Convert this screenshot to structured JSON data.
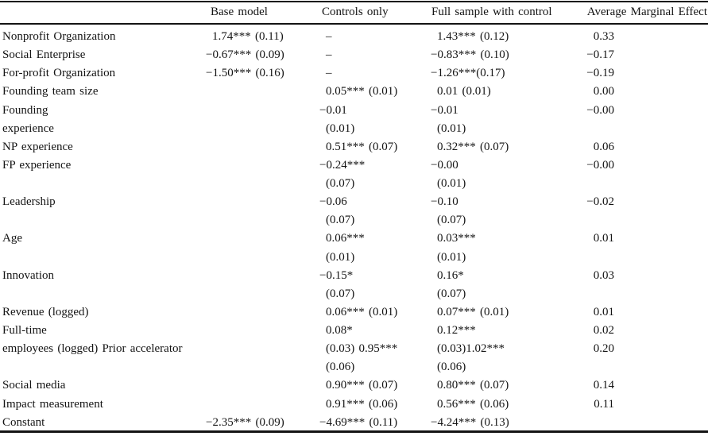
{
  "colors": {
    "background": "#ffffff",
    "text": "#141414",
    "rule": "#141414"
  },
  "table": {
    "columns": [
      "",
      "Base model",
      "Controls only",
      "Full sample with control",
      "Average Marginal Effect"
    ],
    "rows": [
      [
        "Nonprofit Organization",
        "1.74*** (0.11)",
        "–",
        "1.43*** (0.12)",
        "0.33"
      ],
      [
        "Social Enterprise",
        "−0.67*** (0.09)",
        "–",
        "−0.83*** (0.10)",
        "−0.17"
      ],
      [
        "For-profit Organization",
        "−1.50*** (0.16)",
        "–",
        "−1.26***(0.17)",
        "−0.19"
      ],
      [
        "Founding team size",
        "",
        "0.05*** (0.01)",
        "0.01 (0.01)",
        "0.00"
      ],
      [
        "Founding",
        "",
        "−0.01",
        "−0.01",
        "−0.00"
      ],
      [
        "experience",
        "",
        "(0.01)",
        "(0.01)",
        ""
      ],
      [
        "NP experience",
        "",
        "0.51*** (0.07)",
        "0.32*** (0.07)",
        "0.06"
      ],
      [
        "FP experience",
        "",
        "−0.24***",
        "−0.00",
        "−0.00"
      ],
      [
        "",
        "",
        "(0.07)",
        "(0.01)",
        ""
      ],
      [
        "Leadership",
        "",
        "−0.06",
        "−0.10",
        "−0.02"
      ],
      [
        "",
        "",
        "(0.07)",
        "(0.07)",
        ""
      ],
      [
        "Age",
        "",
        "0.06***",
        "0.03***",
        "0.01"
      ],
      [
        "",
        "",
        "(0.01)",
        "(0.01)",
        ""
      ],
      [
        "Innovation",
        "",
        "−0.15*",
        "0.16*",
        "0.03"
      ],
      [
        "",
        "",
        "(0.07)",
        "(0.07)",
        ""
      ],
      [
        "Revenue (logged)",
        "",
        "0.06*** (0.01)",
        "0.07*** (0.01)",
        "0.01"
      ],
      [
        "Full-time",
        "",
        "0.08*",
        "0.12***",
        "0.02"
      ],
      [
        "employees (logged) Prior accelerator",
        "",
        "(0.03) 0.95***",
        "(0.03)1.02***",
        "0.20"
      ],
      [
        "",
        "",
        "(0.06)",
        "(0.06)",
        ""
      ],
      [
        "Social media",
        "",
        "0.90*** (0.07)",
        "0.80*** (0.07)",
        "0.14"
      ],
      [
        "Impact measurement",
        "",
        "0.91*** (0.06)",
        "0.56*** (0.06)",
        "0.11"
      ],
      [
        "Constant",
        "−2.35*** (0.09)",
        "−4.69*** (0.11)",
        "−4.24*** (0.13)",
        ""
      ]
    ]
  }
}
